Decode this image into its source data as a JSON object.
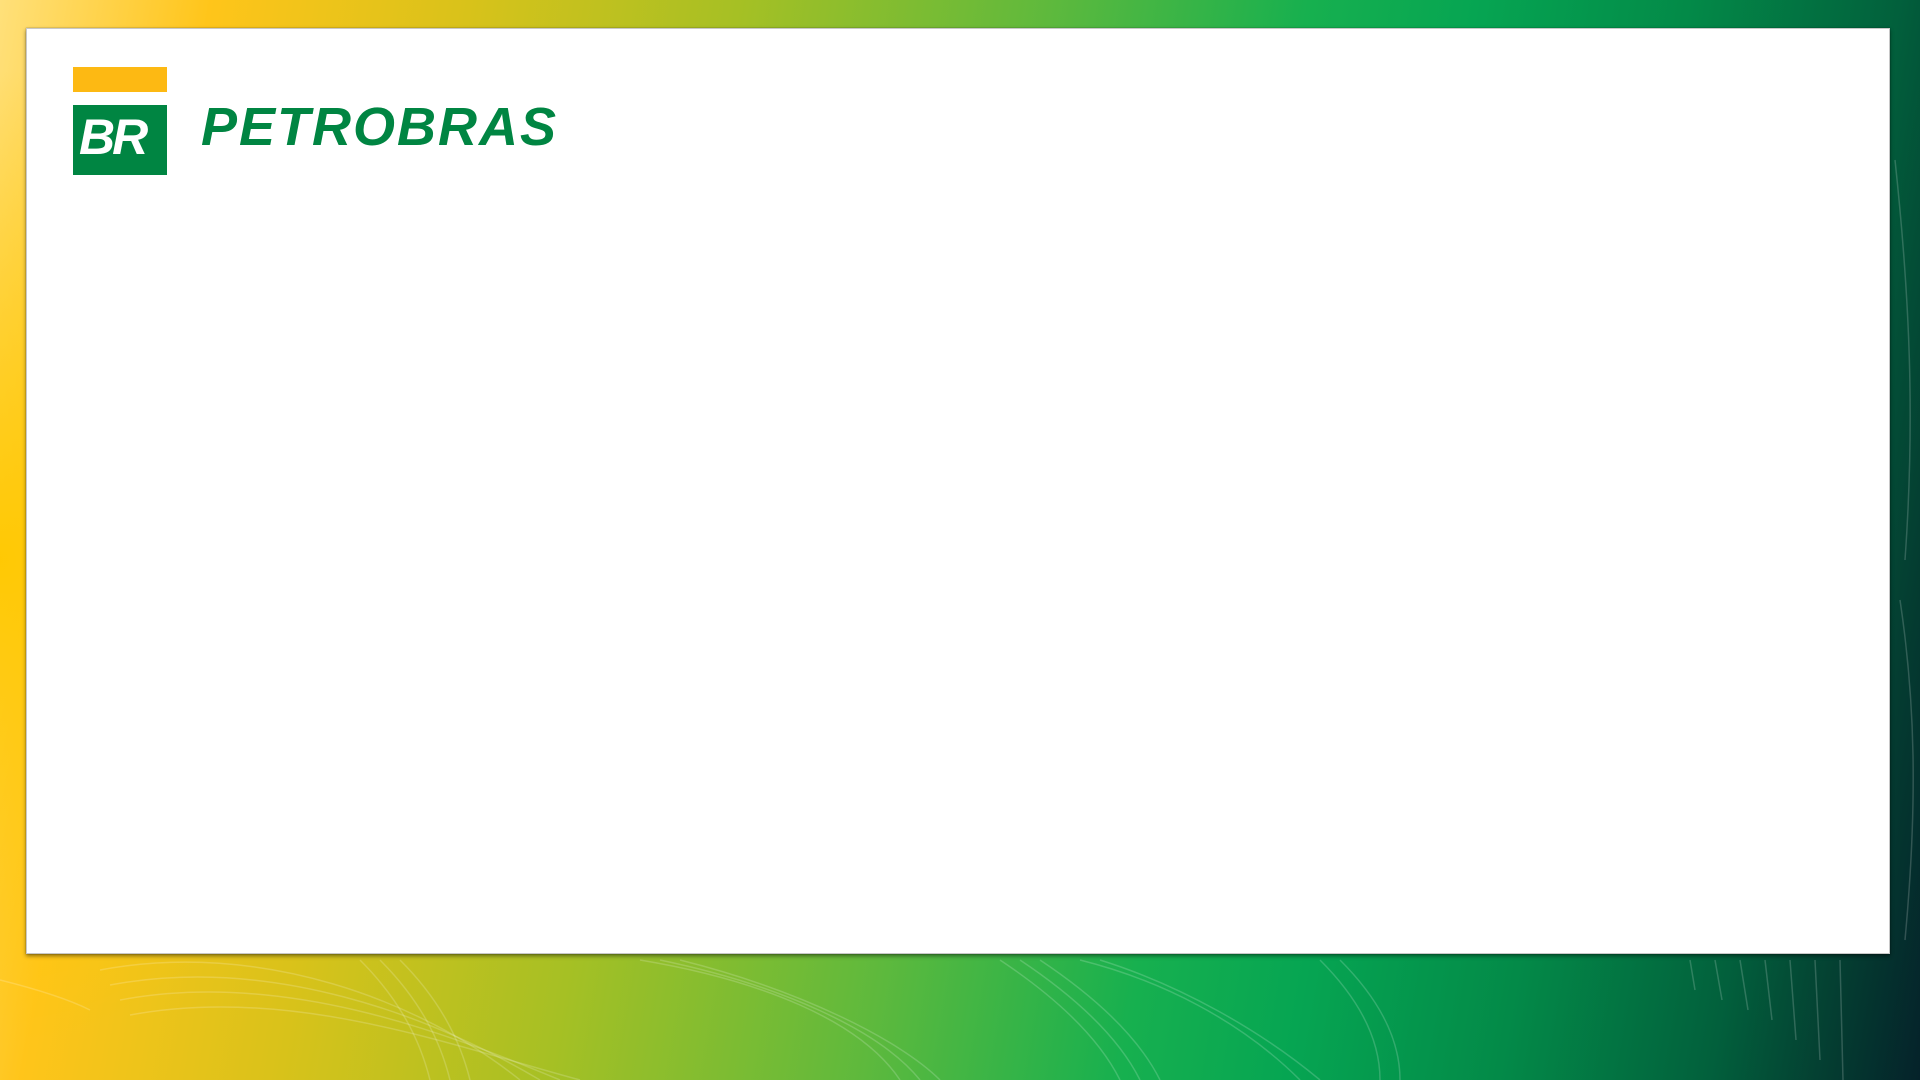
{
  "slide": {
    "logo": {
      "monogram": "BR",
      "wordmark": "PETROBRAS"
    }
  },
  "colors": {
    "brand_green": "#008542",
    "brand_yellow": "#fdb913",
    "background_gradient": [
      "#ffe07a",
      "#ffc51a",
      "#a6c024",
      "#17b04f",
      "#02603c",
      "#05222a"
    ],
    "card": "#ffffff"
  }
}
